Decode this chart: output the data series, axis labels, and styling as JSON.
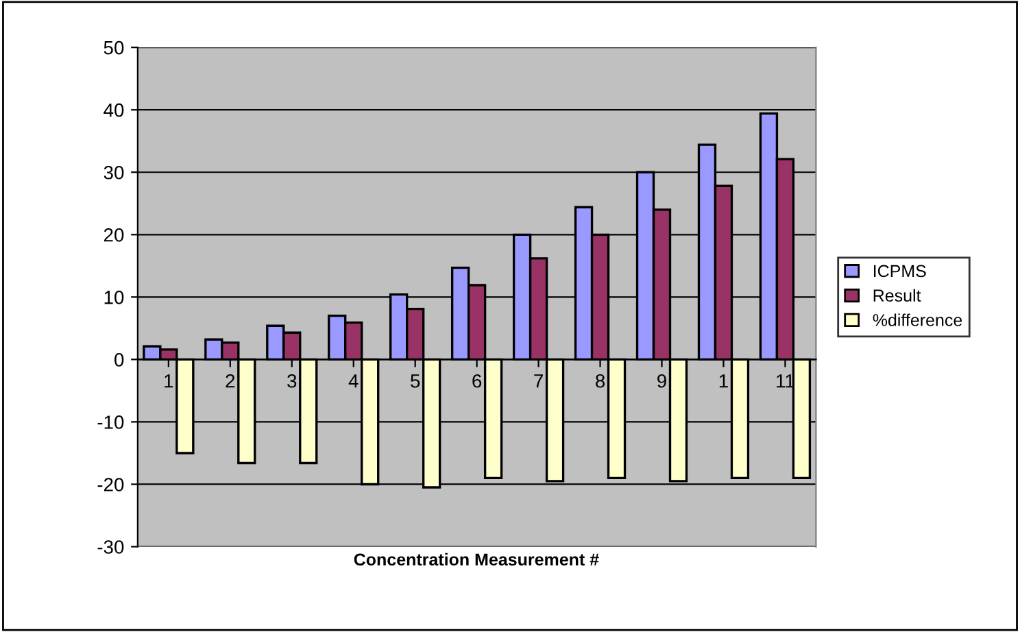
{
  "chart_data": {
    "type": "bar",
    "xlabel": "Concentration Measurement #",
    "categories": [
      "1",
      "2",
      "3",
      "4",
      "5",
      "6",
      "7",
      "8",
      "9",
      "1",
      "11"
    ],
    "series": [
      {
        "name": "ICPMS",
        "color": "#9999ff",
        "values": [
          2.1,
          3.2,
          5.4,
          7.0,
          10.4,
          14.7,
          20.0,
          24.4,
          30.0,
          34.4,
          39.4
        ]
      },
      {
        "name": "Result",
        "color": "#993366",
        "values": [
          1.6,
          2.7,
          4.3,
          5.9,
          8.1,
          11.9,
          16.2,
          20.0,
          24.0,
          27.8,
          32.1
        ]
      },
      {
        "name": "%difference",
        "color": "#ffffcc",
        "values": [
          -15.0,
          -16.6,
          -16.6,
          -20.0,
          -20.5,
          -19.0,
          -19.5,
          -19.0,
          -19.5,
          -19.0,
          -19.0
        ]
      }
    ],
    "ylim": [
      -30,
      50
    ],
    "yticks": [
      -30,
      -20,
      -10,
      0,
      10,
      20,
      30,
      40,
      50
    ],
    "grid": "y",
    "legend": "right"
  }
}
